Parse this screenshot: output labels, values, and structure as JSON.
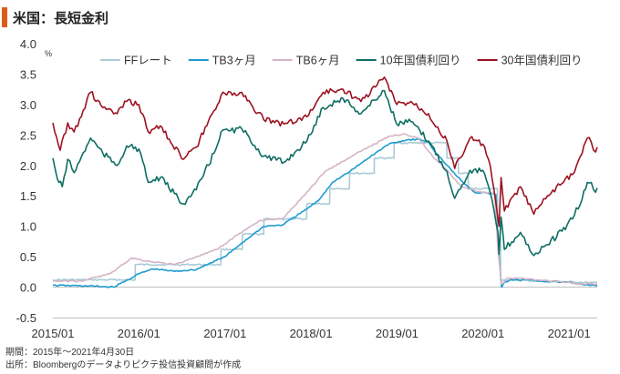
{
  "title": "米国：長短金利",
  "footer": {
    "period": "期間：2015年～2021年4月30日",
    "source": "出所：Bloombergのデータよりピクテ投信投資顧問が作成"
  },
  "chart_data": {
    "type": "line",
    "title": "米国：長短金利",
    "unit_label": "%",
    "ylim": [
      -0.5,
      4.0
    ],
    "yticks": [
      "4.0",
      "3.5",
      "3.0",
      "2.5",
      "2.0",
      "1.5",
      "1.0",
      "0.5",
      "0.0",
      "-0.5"
    ],
    "xlim": [
      "2015-01-01",
      "2021-04-30"
    ],
    "xticks": [
      "2015/01",
      "2016/01",
      "2017/01",
      "2018/01",
      "2019/01",
      "2020/01",
      "2021/01"
    ],
    "grid": false,
    "legend_position": "top",
    "series": [
      {
        "name": "FFレート",
        "color": "#a9cbd6",
        "points": [
          [
            "2015-01-01",
            0.12
          ],
          [
            "2015-12-16",
            0.12
          ],
          [
            "2015-12-17",
            0.37
          ],
          [
            "2016-12-14",
            0.37
          ],
          [
            "2016-12-15",
            0.62
          ],
          [
            "2017-03-15",
            0.62
          ],
          [
            "2017-03-16",
            0.87
          ],
          [
            "2017-06-14",
            0.87
          ],
          [
            "2017-06-15",
            1.12
          ],
          [
            "2017-12-13",
            1.12
          ],
          [
            "2017-12-14",
            1.37
          ],
          [
            "2018-03-21",
            1.37
          ],
          [
            "2018-03-22",
            1.62
          ],
          [
            "2018-06-13",
            1.62
          ],
          [
            "2018-06-14",
            1.87
          ],
          [
            "2018-09-26",
            1.87
          ],
          [
            "2018-09-27",
            2.12
          ],
          [
            "2018-12-19",
            2.12
          ],
          [
            "2018-12-20",
            2.37
          ],
          [
            "2019-07-31",
            2.37
          ],
          [
            "2019-08-01",
            2.12
          ],
          [
            "2019-09-18",
            2.12
          ],
          [
            "2019-09-19",
            1.87
          ],
          [
            "2019-10-30",
            1.87
          ],
          [
            "2019-10-31",
            1.62
          ],
          [
            "2020-03-02",
            1.62
          ],
          [
            "2020-03-03",
            1.12
          ],
          [
            "2020-03-15",
            1.12
          ],
          [
            "2020-03-16",
            0.12
          ],
          [
            "2021-04-30",
            0.07
          ]
        ]
      },
      {
        "name": "TB3ヶ月",
        "color": "#1e9bd0",
        "points": [
          [
            "2015-01-01",
            0.03
          ],
          [
            "2015-06-01",
            0.02
          ],
          [
            "2015-09-15",
            0.0
          ],
          [
            "2015-11-15",
            0.12
          ],
          [
            "2016-01-01",
            0.22
          ],
          [
            "2016-03-01",
            0.3
          ],
          [
            "2016-06-01",
            0.26
          ],
          [
            "2016-09-01",
            0.29
          ],
          [
            "2016-11-01",
            0.4
          ],
          [
            "2017-01-01",
            0.5
          ],
          [
            "2017-03-15",
            0.73
          ],
          [
            "2017-06-15",
            1.0
          ],
          [
            "2017-09-01",
            1.02
          ],
          [
            "2017-12-01",
            1.25
          ],
          [
            "2018-02-01",
            1.42
          ],
          [
            "2018-04-01",
            1.72
          ],
          [
            "2018-06-15",
            1.9
          ],
          [
            "2018-09-01",
            2.12
          ],
          [
            "2018-12-01",
            2.36
          ],
          [
            "2019-02-15",
            2.42
          ],
          [
            "2019-04-01",
            2.43
          ],
          [
            "2019-05-15",
            2.38
          ],
          [
            "2019-06-15",
            2.2
          ],
          [
            "2019-08-15",
            1.95
          ],
          [
            "2019-10-01",
            1.75
          ],
          [
            "2019-12-01",
            1.55
          ],
          [
            "2020-01-15",
            1.55
          ],
          [
            "2020-02-25",
            1.52
          ],
          [
            "2020-03-05",
            0.7
          ],
          [
            "2020-03-20",
            0.0
          ],
          [
            "2020-04-01",
            0.08
          ],
          [
            "2020-05-01",
            0.12
          ],
          [
            "2020-07-01",
            0.12
          ],
          [
            "2020-10-01",
            0.09
          ],
          [
            "2021-01-01",
            0.08
          ],
          [
            "2021-03-01",
            0.04
          ],
          [
            "2021-04-30",
            0.02
          ]
        ]
      },
      {
        "name": "TB6ヶ月",
        "color": "#d3b5c6",
        "points": [
          [
            "2015-01-01",
            0.1
          ],
          [
            "2015-05-01",
            0.1
          ],
          [
            "2015-09-01",
            0.22
          ],
          [
            "2015-12-01",
            0.48
          ],
          [
            "2016-02-01",
            0.43
          ],
          [
            "2016-06-01",
            0.37
          ],
          [
            "2016-09-01",
            0.5
          ],
          [
            "2016-12-01",
            0.62
          ],
          [
            "2017-03-01",
            0.88
          ],
          [
            "2017-06-01",
            1.1
          ],
          [
            "2017-09-01",
            1.12
          ],
          [
            "2017-12-01",
            1.5
          ],
          [
            "2018-03-01",
            1.9
          ],
          [
            "2018-06-01",
            2.1
          ],
          [
            "2018-09-01",
            2.3
          ],
          [
            "2018-12-01",
            2.48
          ],
          [
            "2019-02-01",
            2.52
          ],
          [
            "2019-04-01",
            2.45
          ],
          [
            "2019-06-01",
            2.15
          ],
          [
            "2019-08-01",
            1.93
          ],
          [
            "2019-10-01",
            1.65
          ],
          [
            "2019-12-01",
            1.58
          ],
          [
            "2020-02-20",
            1.53
          ],
          [
            "2020-03-05",
            0.6
          ],
          [
            "2020-03-20",
            0.05
          ],
          [
            "2020-04-15",
            0.15
          ],
          [
            "2020-06-01",
            0.15
          ],
          [
            "2020-09-01",
            0.11
          ],
          [
            "2020-12-01",
            0.09
          ],
          [
            "2021-02-01",
            0.06
          ],
          [
            "2021-04-30",
            0.05
          ]
        ]
      },
      {
        "name": "10年国債利回り",
        "color": "#0e6e63",
        "points": [
          [
            "2015-01-01",
            2.12
          ],
          [
            "2015-01-20",
            1.78
          ],
          [
            "2015-02-10",
            1.65
          ],
          [
            "2015-03-05",
            2.1
          ],
          [
            "2015-04-01",
            1.88
          ],
          [
            "2015-06-10",
            2.45
          ],
          [
            "2015-08-01",
            2.2
          ],
          [
            "2015-10-01",
            2.0
          ],
          [
            "2015-11-10",
            2.32
          ],
          [
            "2016-01-01",
            2.27
          ],
          [
            "2016-02-10",
            1.72
          ],
          [
            "2016-04-01",
            1.8
          ],
          [
            "2016-07-08",
            1.37
          ],
          [
            "2016-09-01",
            1.6
          ],
          [
            "2016-11-15",
            2.2
          ],
          [
            "2016-12-15",
            2.55
          ],
          [
            "2017-03-13",
            2.6
          ],
          [
            "2017-06-14",
            2.15
          ],
          [
            "2017-09-08",
            2.05
          ],
          [
            "2017-12-15",
            2.4
          ],
          [
            "2018-02-21",
            2.95
          ],
          [
            "2018-05-17",
            3.1
          ],
          [
            "2018-08-01",
            2.85
          ],
          [
            "2018-11-08",
            3.23
          ],
          [
            "2018-12-31",
            2.68
          ],
          [
            "2019-03-01",
            2.72
          ],
          [
            "2019-05-15",
            2.4
          ],
          [
            "2019-08-01",
            1.9
          ],
          [
            "2019-09-03",
            1.46
          ],
          [
            "2019-11-07",
            1.92
          ],
          [
            "2019-12-31",
            1.92
          ],
          [
            "2020-02-01",
            1.55
          ],
          [
            "2020-03-05",
            0.9
          ],
          [
            "2020-03-09",
            0.54
          ],
          [
            "2020-03-18",
            1.15
          ],
          [
            "2020-04-01",
            0.62
          ],
          [
            "2020-06-08",
            0.9
          ],
          [
            "2020-08-04",
            0.52
          ],
          [
            "2020-10-01",
            0.7
          ],
          [
            "2020-12-01",
            0.92
          ],
          [
            "2021-01-15",
            1.12
          ],
          [
            "2021-02-25",
            1.45
          ],
          [
            "2021-03-19",
            1.72
          ],
          [
            "2021-04-05",
            1.72
          ],
          [
            "2021-04-23",
            1.56
          ],
          [
            "2021-04-30",
            1.63
          ]
        ]
      },
      {
        "name": "30年国債利回り",
        "color": "#9c1220",
        "points": [
          [
            "2015-01-01",
            2.7
          ],
          [
            "2015-02-01",
            2.25
          ],
          [
            "2015-03-05",
            2.7
          ],
          [
            "2015-04-01",
            2.55
          ],
          [
            "2015-06-10",
            3.2
          ],
          [
            "2015-08-01",
            2.95
          ],
          [
            "2015-10-01",
            2.85
          ],
          [
            "2015-11-10",
            3.05
          ],
          [
            "2016-01-01",
            3.0
          ],
          [
            "2016-02-10",
            2.55
          ],
          [
            "2016-04-01",
            2.65
          ],
          [
            "2016-07-08",
            2.1
          ],
          [
            "2016-09-01",
            2.3
          ],
          [
            "2016-11-15",
            2.9
          ],
          [
            "2016-12-15",
            3.15
          ],
          [
            "2017-03-13",
            3.2
          ],
          [
            "2017-06-14",
            2.75
          ],
          [
            "2017-09-08",
            2.68
          ],
          [
            "2017-12-15",
            2.8
          ],
          [
            "2018-02-21",
            3.2
          ],
          [
            "2018-05-17",
            3.25
          ],
          [
            "2018-08-01",
            3.05
          ],
          [
            "2018-11-08",
            3.45
          ],
          [
            "2018-12-31",
            3.0
          ],
          [
            "2019-03-01",
            3.05
          ],
          [
            "2019-05-15",
            2.85
          ],
          [
            "2019-08-01",
            2.4
          ],
          [
            "2019-09-03",
            1.95
          ],
          [
            "2019-11-07",
            2.45
          ],
          [
            "2019-12-31",
            2.35
          ],
          [
            "2020-02-01",
            2.0
          ],
          [
            "2020-03-09",
            1.0
          ],
          [
            "2020-03-18",
            1.8
          ],
          [
            "2020-04-01",
            1.25
          ],
          [
            "2020-06-08",
            1.65
          ],
          [
            "2020-08-04",
            1.2
          ],
          [
            "2020-10-01",
            1.5
          ],
          [
            "2020-12-01",
            1.7
          ],
          [
            "2021-01-15",
            1.85
          ],
          [
            "2021-02-25",
            2.2
          ],
          [
            "2021-03-19",
            2.45
          ],
          [
            "2021-04-05",
            2.38
          ],
          [
            "2021-04-23",
            2.22
          ],
          [
            "2021-04-30",
            2.3
          ]
        ]
      }
    ]
  }
}
